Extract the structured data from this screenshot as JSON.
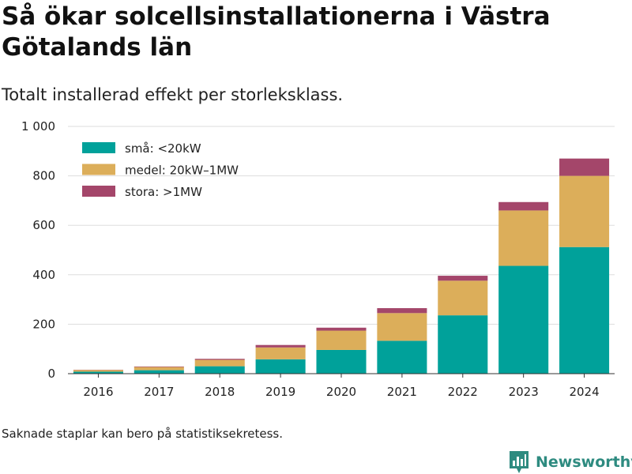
{
  "title": "Så ökar solcellsinstallationerna i Västra Götalands län",
  "subtitle": "Totalt installerad effekt per storleksklass.",
  "footnote": "Saknade staplar kan bero på statistiksekretess.",
  "brand": {
    "name": "Newsworthy",
    "icon": "newsworthy-logo-icon"
  },
  "chart_data": {
    "type": "bar",
    "stacked": true,
    "categories": [
      "2016",
      "2017",
      "2018",
      "2019",
      "2020",
      "2021",
      "2022",
      "2023",
      "2024"
    ],
    "series": [
      {
        "name": "små: <20kW",
        "color": "#00a19a",
        "values": [
          8,
          14,
          30,
          58,
          96,
          133,
          236,
          436,
          512
        ]
      },
      {
        "name": "medel: 20kW–1MW",
        "color": "#dcae5a",
        "values": [
          7,
          13,
          26,
          48,
          78,
          112,
          140,
          224,
          288
        ]
      },
      {
        "name": "stora: >1MW",
        "color": "#a4466a",
        "values": [
          1,
          2,
          4,
          10,
          12,
          20,
          20,
          34,
          70
        ]
      }
    ],
    "ylim": [
      0,
      1000
    ],
    "yticks": [
      0,
      200,
      400,
      600,
      800,
      1000
    ],
    "ytick_labels": [
      "0",
      "200",
      "400",
      "600",
      "800",
      "1 000"
    ],
    "grid": true,
    "legend_position": "top-left"
  }
}
